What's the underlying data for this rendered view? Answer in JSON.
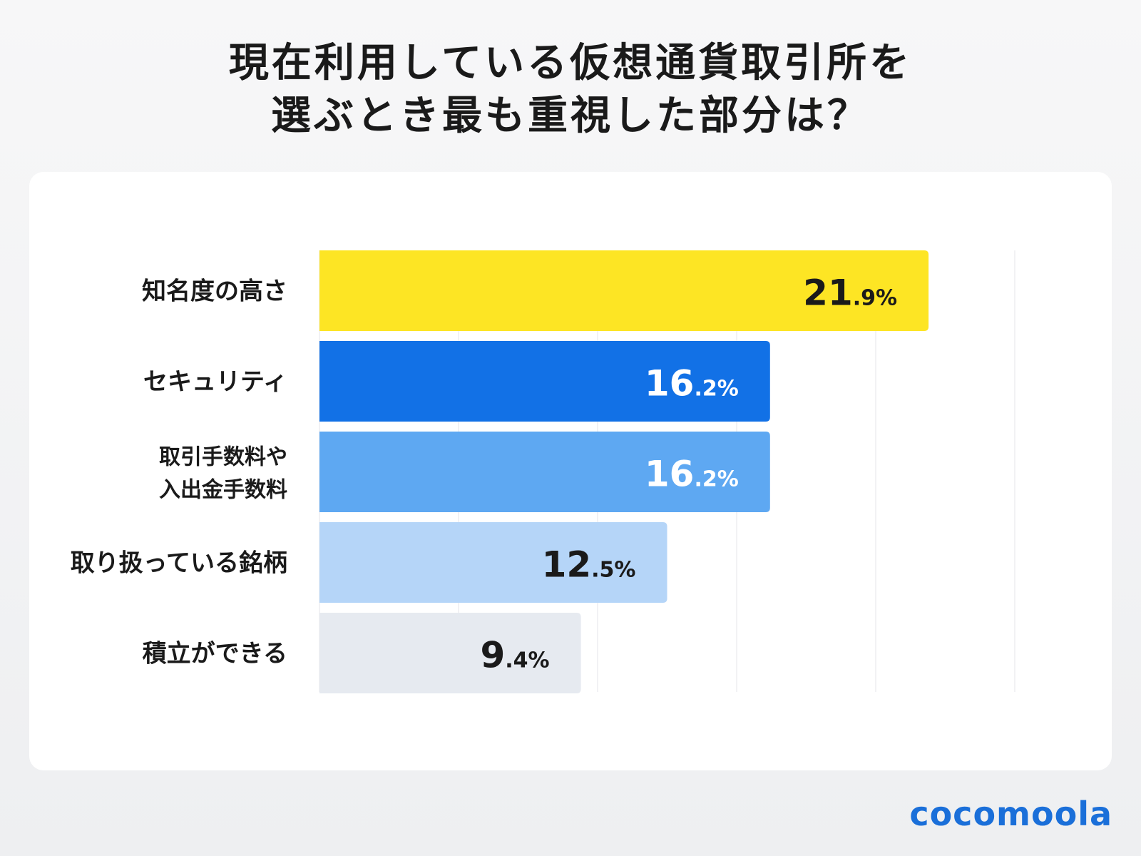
{
  "title": {
    "line1": "現在利用している仮想通貨取引所を",
    "line2": "選ぶとき最も重視した部分は？"
  },
  "logo": "cocomoola",
  "chart_data": {
    "type": "bar",
    "orientation": "horizontal",
    "title": "現在利用している仮想通貨取引所を選ぶとき最も重視した部分は？",
    "categories": [
      "知名度の高さ",
      "セキュリティ",
      "取引手数料や\n入出金手数料",
      "取り扱っている銘柄",
      "積立ができる"
    ],
    "values": [
      21.9,
      16.2,
      16.2,
      12.5,
      9.4
    ],
    "value_labels": [
      "21.9%",
      "16.2%",
      "16.2%",
      "12.5%",
      "9.4%"
    ],
    "colors": [
      "#fde524",
      "#1271e6",
      "#5ea8f2",
      "#b5d5f8",
      "#e6eaf0"
    ],
    "label_colors": [
      "#1a1a1a",
      "#ffffff",
      "#ffffff",
      "#1a1a1a",
      "#1a1a1a"
    ],
    "xlim": [
      0,
      25
    ],
    "grid_step": 5,
    "grid": true,
    "xlabel": "",
    "ylabel": ""
  }
}
